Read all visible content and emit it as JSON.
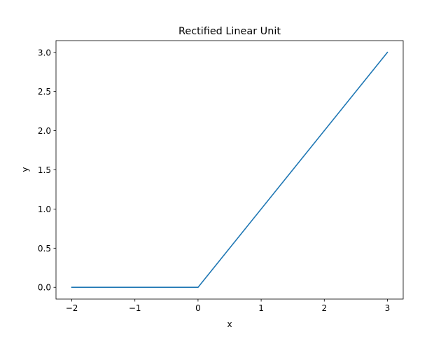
{
  "chart_data": {
    "type": "line",
    "title": "Rectified Linear Unit",
    "xlabel": "x",
    "ylabel": "y",
    "xlim": [
      -2.25,
      3.25
    ],
    "ylim": [
      -0.15,
      3.15
    ],
    "grid": false,
    "x_ticks": [
      {
        "value": -2,
        "label": "−2"
      },
      {
        "value": -1,
        "label": "−1"
      },
      {
        "value": 0,
        "label": "0"
      },
      {
        "value": 1,
        "label": "1"
      },
      {
        "value": 2,
        "label": "2"
      },
      {
        "value": 3,
        "label": "3"
      }
    ],
    "y_ticks": [
      {
        "value": 0.0,
        "label": "0.0"
      },
      {
        "value": 0.5,
        "label": "0.5"
      },
      {
        "value": 1.0,
        "label": "1.0"
      },
      {
        "value": 1.5,
        "label": "1.5"
      },
      {
        "value": 2.0,
        "label": "2.0"
      },
      {
        "value": 2.5,
        "label": "2.5"
      },
      {
        "value": 3.0,
        "label": "3.0"
      }
    ],
    "series": [
      {
        "color": "#1f77b4",
        "points": [
          {
            "x": -2,
            "y": 0
          },
          {
            "x": 0,
            "y": 0
          },
          {
            "x": 3,
            "y": 3
          }
        ]
      }
    ]
  }
}
